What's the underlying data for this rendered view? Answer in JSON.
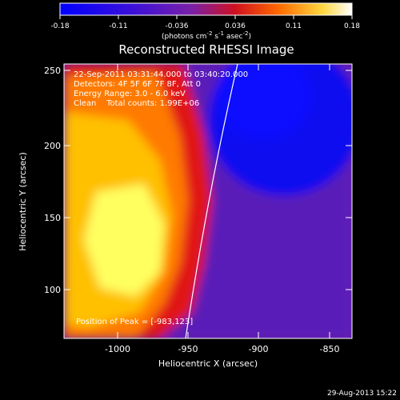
{
  "title": "Reconstructed RHESSI Image",
  "colorbar": {
    "tick_labels": [
      "-0.18",
      "-0.11",
      "-0.036",
      "0.036",
      "0.11",
      "0.18"
    ],
    "units_prefix": "(photons cm",
    "units_exp1": "-2",
    "units_mid": " s",
    "units_exp2": "-1",
    "units_mid2": " asec",
    "units_exp3": "-2",
    "units_suffix": ")"
  },
  "axes": {
    "xlabel": "Heliocentric X (arcsec)",
    "ylabel": "Heliocentric Y (arcsec)",
    "x_ticks": [
      "-1000",
      "-950",
      "-900",
      "-850"
    ],
    "y_ticks": [
      "250",
      "200",
      "150",
      "100"
    ]
  },
  "info": {
    "line1": "22-Sep-2011 03:31:44.000 to 03:40:20.000",
    "line2": "Detectors: 4F 5F 6F 7F 8F, Att 0",
    "line3": "Energy Range: 3.0 - 6.0 keV",
    "line4": "Clean    Total counts: 1.99E+06",
    "peak": "Position of Peak = [-983,123]"
  },
  "footer_date": "29-Aug-2013 15:22",
  "colors": {
    "background": "#000000",
    "blue": "#1a1aff",
    "purple": "#6a1fb0",
    "red": "#e01010",
    "orange": "#ff8a00",
    "yellow": "#ffff60"
  }
}
